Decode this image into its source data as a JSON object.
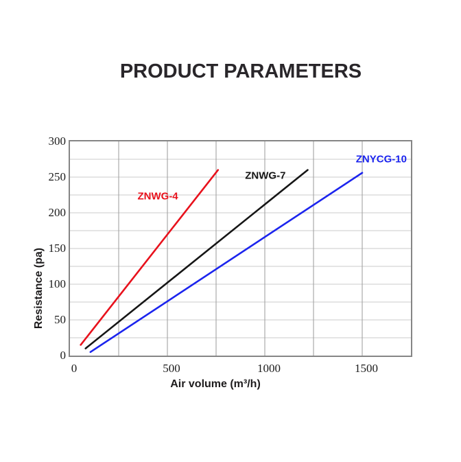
{
  "page": {
    "title": "PRODUCT PARAMETERS",
    "title_color": "#29262a"
  },
  "chart_data": {
    "type": "line",
    "title": "",
    "xlabel": "Air volume (m³/h)",
    "ylabel": "Resistance (pa)",
    "xlim": [
      0,
      1750
    ],
    "ylim": [
      0,
      300
    ],
    "x_tick_labels": [
      "0",
      "500",
      "1000",
      "1500"
    ],
    "x_tick_values": [
      0,
      500,
      1000,
      1500
    ],
    "x_grid_every": 250,
    "y_tick_labels": [
      "0",
      "50",
      "100",
      "150",
      "200",
      "250",
      "300"
    ],
    "y_tick_values": [
      0,
      50,
      100,
      150,
      200,
      250,
      300
    ],
    "y_grid_every": 25,
    "grid": true,
    "legend_position": "inline-labels",
    "grid_color_h": "#cbcbcb",
    "grid_color_v": "#9a9a9a",
    "border_color": "#858585",
    "series": [
      {
        "name": "ZNWG-4",
        "color": "#e8111c",
        "points": [
          [
            55,
            15
          ],
          [
            760,
            260
          ]
        ],
        "label_at": [
          451,
          223
        ]
      },
      {
        "name": "ZNWG-7",
        "color": "#161616",
        "points": [
          [
            80,
            10
          ],
          [
            1220,
            260
          ]
        ],
        "label_at": [
          1003,
          252
        ]
      },
      {
        "name": "ZNYCG-10",
        "color": "#1b24ee",
        "points": [
          [
            105,
            5
          ],
          [
            1500,
            256
          ]
        ],
        "label_at": [
          1598,
          275
        ]
      }
    ]
  }
}
